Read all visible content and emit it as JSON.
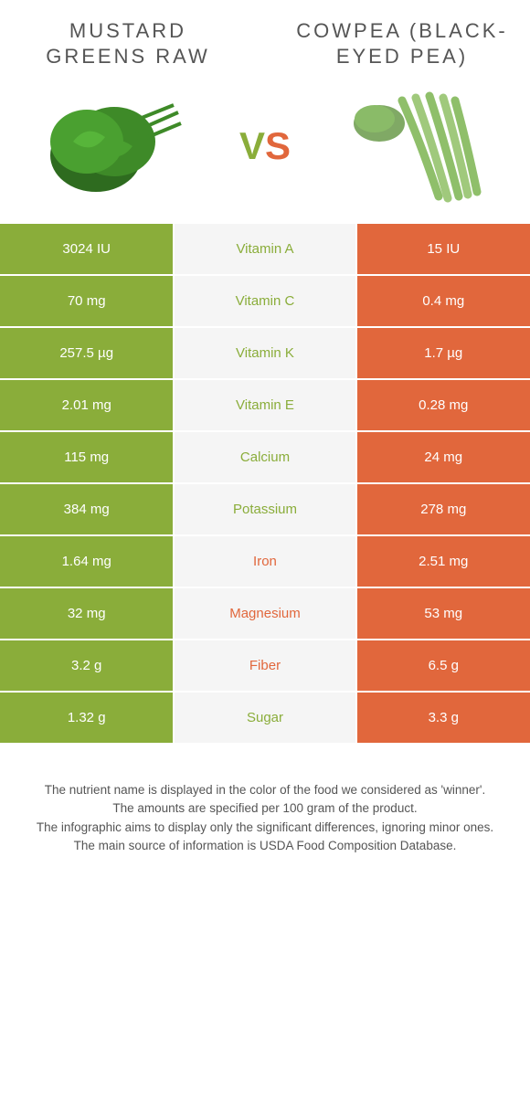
{
  "colors": {
    "left": "#8aad3a",
    "right": "#e1673c",
    "mid_bg": "#f5f5f5",
    "text": "#555555"
  },
  "foods": {
    "left": {
      "title": "MUSTARD GREENS RAW"
    },
    "right": {
      "title": "COWPEA (BLACK-EYED PEA)"
    }
  },
  "rows": [
    {
      "nutrient": "Vitamin A",
      "left": "3024 IU",
      "right": "15 IU",
      "winner": "left"
    },
    {
      "nutrient": "Vitamin C",
      "left": "70 mg",
      "right": "0.4 mg",
      "winner": "left"
    },
    {
      "nutrient": "Vitamin K",
      "left": "257.5 µg",
      "right": "1.7 µg",
      "winner": "left"
    },
    {
      "nutrient": "Vitamin E",
      "left": "2.01 mg",
      "right": "0.28 mg",
      "winner": "left"
    },
    {
      "nutrient": "Calcium",
      "left": "115 mg",
      "right": "24 mg",
      "winner": "left"
    },
    {
      "nutrient": "Potassium",
      "left": "384 mg",
      "right": "278 mg",
      "winner": "left"
    },
    {
      "nutrient": "Iron",
      "left": "1.64 mg",
      "right": "2.51 mg",
      "winner": "right"
    },
    {
      "nutrient": "Magnesium",
      "left": "32 mg",
      "right": "53 mg",
      "winner": "right"
    },
    {
      "nutrient": "Fiber",
      "left": "3.2 g",
      "right": "6.5 g",
      "winner": "right"
    },
    {
      "nutrient": "Sugar",
      "left": "1.32 g",
      "right": "3.3 g",
      "winner": "left"
    }
  ],
  "footer": {
    "line1": "The nutrient name is displayed in the color of the food we considered as 'winner'.",
    "line2": "The amounts are specified per 100 gram of the product.",
    "line3": "The infographic aims to display only the significant differences, ignoring minor ones.",
    "line4": "The main source of information is USDA Food Composition Database."
  }
}
